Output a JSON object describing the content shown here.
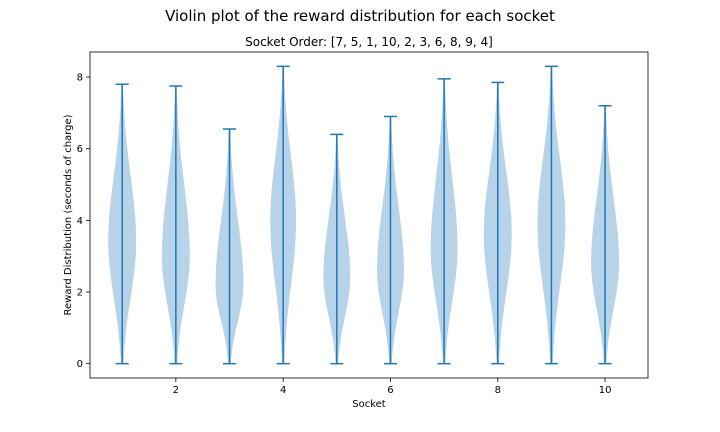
{
  "chart_data": {
    "type": "violin",
    "suptitle": "Violin plot of the reward distribution for each socket",
    "title": "Socket Order: [7, 5, 1, 10, 2, 3, 6, 8, 9, 4]",
    "xlabel": "Socket",
    "ylabel": "Reward Distribution (seconds of charge)",
    "xlim": [
      0.4,
      10.8
    ],
    "ylim": [
      -0.4,
      8.7
    ],
    "xticks": [
      2,
      4,
      6,
      8,
      10
    ],
    "yticks": [
      0,
      2,
      4,
      6,
      8
    ],
    "color": "#1f77b4",
    "fill_color": "#b6d3e9",
    "series": [
      {
        "socket": 1,
        "min": 0.0,
        "max": 7.8,
        "peak": 3.4,
        "width": 0.26
      },
      {
        "socket": 2,
        "min": 0.0,
        "max": 7.75,
        "peak": 3.0,
        "width": 0.26
      },
      {
        "socket": 3,
        "min": 0.0,
        "max": 6.55,
        "peak": 2.2,
        "width": 0.26
      },
      {
        "socket": 4,
        "min": 0.0,
        "max": 8.3,
        "peak": 4.0,
        "width": 0.24
      },
      {
        "socket": 5,
        "min": 0.0,
        "max": 6.4,
        "peak": 2.4,
        "width": 0.25
      },
      {
        "socket": 6,
        "min": 0.0,
        "max": 6.9,
        "peak": 2.6,
        "width": 0.25
      },
      {
        "socket": 7,
        "min": 0.0,
        "max": 7.95,
        "peak": 3.2,
        "width": 0.25
      },
      {
        "socket": 8,
        "min": 0.0,
        "max": 7.85,
        "peak": 3.6,
        "width": 0.26
      },
      {
        "socket": 9,
        "min": 0.0,
        "max": 8.3,
        "peak": 3.9,
        "width": 0.26
      },
      {
        "socket": 10,
        "min": 0.0,
        "max": 7.2,
        "peak": 2.8,
        "width": 0.26
      }
    ]
  }
}
